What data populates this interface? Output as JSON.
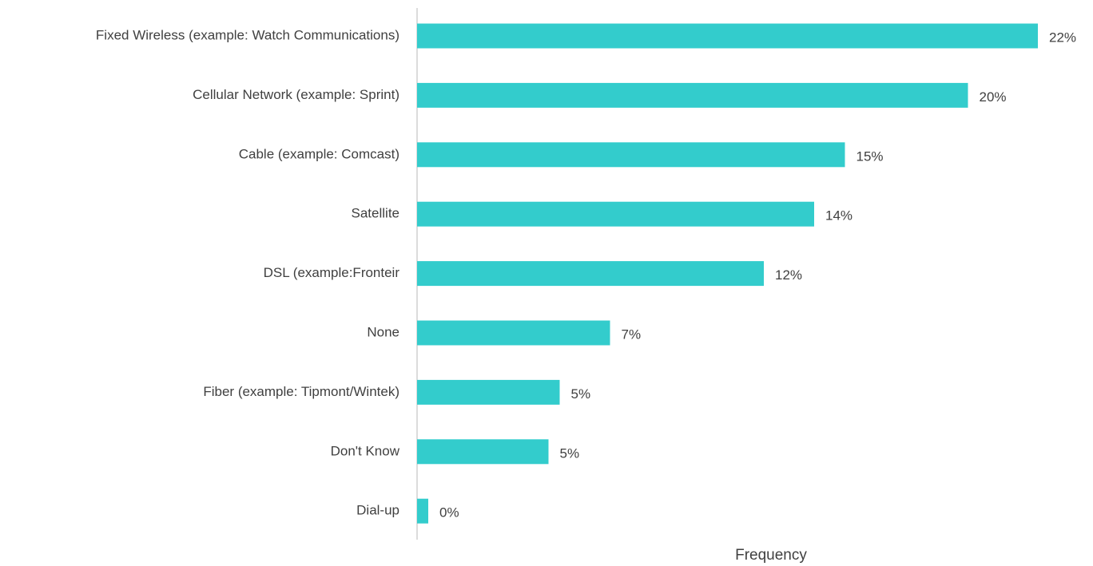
{
  "chart_data": {
    "type": "bar",
    "orientation": "horizontal",
    "x_label": "Frequency",
    "categories": [
      "Fixed Wireless (example: Watch Communications)",
      "Cellular Network (example: Sprint)",
      "Cable (example: Comcast)",
      "Satellite",
      "DSL (example:Fronteir",
      "None",
      "Fiber (example: Tipmont/Wintek)",
      "Don't Know",
      "Dial-up"
    ],
    "values": [
      22.2,
      19.7,
      15.3,
      14.2,
      12.4,
      6.9,
      5.1,
      4.7,
      0.4
    ],
    "value_labels": [
      "22%",
      "20%",
      "15%",
      "14%",
      "12%",
      "7%",
      "5%",
      "5%",
      "0%"
    ],
    "color": "#33cccc",
    "xlim": [
      0,
      25
    ]
  }
}
